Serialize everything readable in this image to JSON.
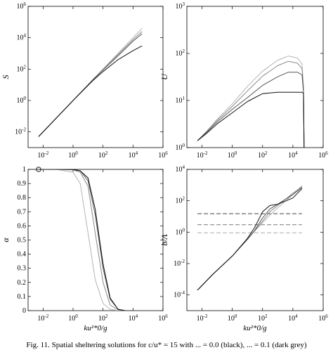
{
  "caption": "Fig. 11. Spatial sheltering solutions for c/u* = 15 with ... = 0.0 (black), ... = 0.1 (dark grey)",
  "colors": {
    "black": "#111111",
    "dark_grey": "#555555",
    "mid_grey": "#888888",
    "light_grey": "#b4b4b4"
  },
  "chart_data": [
    {
      "type": "line",
      "panel": "top-left",
      "ylabel": "S",
      "xlabel": "",
      "xscale": "log",
      "yscale": "log",
      "xlim": [
        0.001,
        1000000
      ],
      "ylim": [
        0.001,
        1000000
      ],
      "xticks": [
        "10^{-2}",
        "10^{0}",
        "10^{2}",
        "10^{4}",
        "10^{6}"
      ],
      "yticks": [
        "10^{-2}",
        "10^{0}",
        "10^{2}",
        "10^{4}",
        "10^{6}"
      ],
      "x": [
        0.005,
        0.05,
        1,
        20,
        100,
        1000,
        10000,
        40000
      ],
      "series": [
        {
          "color": "light_grey",
          "values": [
            0.005,
            0.05,
            1,
            20,
            100,
            1000,
            10000,
            40000
          ]
        },
        {
          "color": "mid_grey",
          "values": [
            0.005,
            0.05,
            1,
            20,
            95,
            850,
            7500,
            25000
          ]
        },
        {
          "color": "dark_grey",
          "values": [
            0.005,
            0.05,
            1,
            20,
            90,
            700,
            6000,
            18000
          ]
        },
        {
          "color": "black",
          "values": [
            0.005,
            0.05,
            1,
            18,
            70,
            400,
            1500,
            3000
          ]
        }
      ]
    },
    {
      "type": "line",
      "panel": "top-right",
      "ylabel": "U",
      "xlabel": "",
      "xscale": "log",
      "yscale": "log",
      "xlim": [
        0.001,
        1000000
      ],
      "ylim": [
        1,
        1000
      ],
      "xticks": [
        "10^{-2}",
        "10^{0}",
        "10^{2}",
        "10^{4}",
        "10^{6}"
      ],
      "yticks": [
        "10^{0}",
        "10^{1}",
        "10^{2}",
        "10^{3}"
      ],
      "x": [
        0.005,
        0.02,
        0.1,
        1,
        10,
        100,
        1000,
        5000,
        20000,
        40000,
        50000,
        55000
      ],
      "series": [
        {
          "color": "light_grey",
          "values": [
            1.4,
            2.2,
            4,
            8.5,
            20,
            42,
            72,
            88,
            80,
            60,
            20,
            1
          ]
        },
        {
          "color": "mid_grey",
          "values": [
            1.4,
            2.2,
            3.8,
            7.5,
            16,
            33,
            55,
            68,
            62,
            48,
            18,
            1
          ]
        },
        {
          "color": "dark_grey",
          "values": [
            1.4,
            2.1,
            3.5,
            6.5,
            11.5,
            21,
            32,
            40,
            40,
            35,
            15,
            1
          ]
        },
        {
          "color": "black",
          "values": [
            1.4,
            2,
            3.2,
            5.5,
            9.5,
            14,
            15,
            15,
            15,
            15,
            14,
            1
          ]
        }
      ]
    },
    {
      "type": "line",
      "panel": "bottom-left",
      "ylabel": "α",
      "xlabel": "ku²*0/g",
      "xscale": "log",
      "yscale": "linear",
      "xlim": [
        0.001,
        1000000
      ],
      "ylim": [
        0,
        1
      ],
      "xticks": [
        "10^{-2}",
        "10^{0}",
        "10^{2}",
        "10^{4}",
        "10^{6}"
      ],
      "yticks": [
        "0",
        "0.1",
        "0.2",
        "0.3",
        "0.4",
        "0.5",
        "0.6",
        "0.7",
        "0.8",
        "0.9",
        "1"
      ],
      "marker": {
        "x": 0.005,
        "y": 1,
        "symbol": "circle"
      },
      "x": [
        0.005,
        0.1,
        1,
        3,
        10,
        30,
        100,
        300,
        1000,
        3000,
        10000
      ],
      "series": [
        {
          "color": "light_grey",
          "values": [
            1,
            0.998,
            0.98,
            0.9,
            0.55,
            0.22,
            0.05,
            0.01,
            0,
            0,
            0
          ]
        },
        {
          "color": "mid_grey",
          "values": [
            1,
            1,
            0.997,
            0.98,
            0.88,
            0.55,
            0.2,
            0.04,
            0.005,
            0,
            0
          ]
        },
        {
          "color": "dark_grey",
          "values": [
            1,
            1,
            0.999,
            0.99,
            0.92,
            0.68,
            0.3,
            0.08,
            0.01,
            0,
            0
          ]
        },
        {
          "color": "black",
          "values": [
            1,
            1,
            0.999,
            0.99,
            0.94,
            0.72,
            0.33,
            0.09,
            0.01,
            0,
            0
          ]
        }
      ]
    },
    {
      "type": "line",
      "panel": "bottom-right",
      "ylabel": "b/Λ",
      "xlabel": "ku²*0/g",
      "xscale": "log",
      "yscale": "log",
      "xlim": [
        0.001,
        1000000
      ],
      "ylim": [
        1e-05,
        10000
      ],
      "xticks": [
        "10^{-2}",
        "10^{0}",
        "10^{2}",
        "10^{4}",
        "10^{6}"
      ],
      "yticks": [
        "10^{-4}",
        "10^{-2}",
        "10^{0}",
        "10^{2}",
        "10^{4}"
      ],
      "x": [
        0.005,
        0.05,
        1,
        10,
        30,
        100,
        300,
        1000,
        10000,
        40000
      ],
      "series": [
        {
          "color": "light_grey",
          "values": [
            0.0002,
            0.002,
            0.03,
            0.35,
            1.2,
            4,
            12,
            35,
            250,
            900
          ]
        },
        {
          "color": "mid_grey",
          "values": [
            0.0002,
            0.002,
            0.03,
            0.35,
            1.2,
            5,
            20,
            50,
            300,
            800
          ]
        },
        {
          "color": "dark_grey",
          "values": [
            0.0002,
            0.002,
            0.03,
            0.35,
            1.3,
            8,
            30,
            60,
            250,
            700
          ]
        },
        {
          "color": "black",
          "values": [
            0.0002,
            0.002,
            0.03,
            0.4,
            2,
            20,
            50,
            60,
            150,
            600
          ]
        }
      ],
      "dashed_levels": [
        {
          "color": "dark_grey",
          "value": 15
        },
        {
          "color": "mid_grey",
          "value": 3
        },
        {
          "color": "light_grey",
          "value": 0.9
        }
      ]
    }
  ]
}
